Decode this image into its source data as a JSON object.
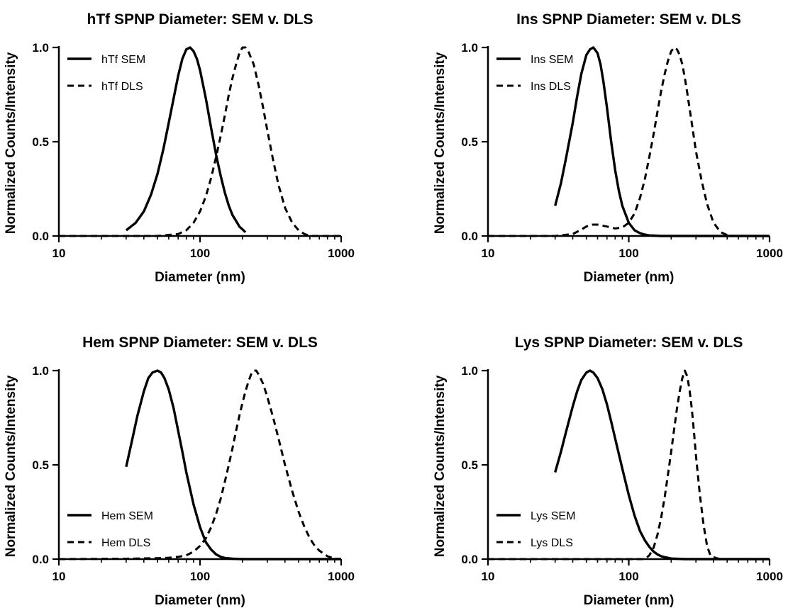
{
  "chart_data": [
    {
      "type": "line",
      "title": "hTf SPNP Diameter: SEM v. DLS",
      "xlabel": "Diameter (nm)",
      "ylabel": "Normalized Counts/Intensity",
      "xscale": "log",
      "xlim": [
        10,
        1000
      ],
      "ylim": [
        0,
        1
      ],
      "xticks": [
        10,
        100,
        1000
      ],
      "xtick_labels": [
        "10",
        "100",
        "1000"
      ],
      "yticks": [
        0,
        0.5,
        1
      ],
      "ytick_labels": [
        "0.0",
        "0.5",
        "1.0"
      ],
      "grid": false,
      "legend": "top-left",
      "series": [
        {
          "name": "hTf SEM",
          "style": "solid",
          "x": [
            30,
            35,
            40,
            45,
            50,
            55,
            60,
            65,
            70,
            75,
            80,
            85,
            90,
            95,
            100,
            110,
            120,
            130,
            140,
            150,
            160,
            170,
            180,
            190,
            200,
            210
          ],
          "y": [
            0.03,
            0.07,
            0.13,
            0.22,
            0.33,
            0.46,
            0.6,
            0.73,
            0.85,
            0.94,
            0.99,
            1.0,
            0.98,
            0.94,
            0.88,
            0.73,
            0.57,
            0.43,
            0.32,
            0.23,
            0.16,
            0.11,
            0.08,
            0.05,
            0.035,
            0.02
          ]
        },
        {
          "name": "hTf DLS",
          "style": "dashed",
          "x": [
            10,
            30,
            50,
            70,
            80,
            90,
            100,
            110,
            120,
            130,
            140,
            150,
            160,
            170,
            180,
            190,
            200,
            210,
            220,
            240,
            260,
            280,
            300,
            330,
            360,
            400,
            450,
            500,
            550,
            600,
            650,
            700,
            800,
            1000
          ],
          "y": [
            0,
            0,
            0,
            0.01,
            0.03,
            0.07,
            0.13,
            0.21,
            0.31,
            0.42,
            0.53,
            0.64,
            0.75,
            0.84,
            0.91,
            0.97,
            1.0,
            1.0,
            0.98,
            0.91,
            0.8,
            0.68,
            0.56,
            0.4,
            0.27,
            0.15,
            0.07,
            0.03,
            0.01,
            0,
            0,
            0,
            0,
            0
          ]
        }
      ]
    },
    {
      "type": "line",
      "title": "Ins SPNP Diameter: SEM v. DLS",
      "xlabel": "Diameter (nm)",
      "ylabel": "Normalized Counts/Intensity",
      "xscale": "log",
      "xlim": [
        10,
        1000
      ],
      "ylim": [
        0,
        1
      ],
      "xticks": [
        10,
        100,
        1000
      ],
      "xtick_labels": [
        "10",
        "100",
        "1000"
      ],
      "yticks": [
        0,
        0.5,
        1
      ],
      "ytick_labels": [
        "0.0",
        "0.5",
        "1.0"
      ],
      "grid": false,
      "legend": "top-left",
      "series": [
        {
          "name": "Ins SEM",
          "style": "solid",
          "x": [
            30,
            33,
            36,
            40,
            43,
            46,
            50,
            53,
            56,
            60,
            63,
            66,
            70,
            75,
            80,
            85,
            90,
            100,
            110,
            120,
            130,
            140,
            150,
            170,
            200,
            250,
            300,
            500,
            1000
          ],
          "y": [
            0.16,
            0.28,
            0.42,
            0.6,
            0.74,
            0.86,
            0.96,
            0.99,
            1.0,
            0.97,
            0.91,
            0.82,
            0.68,
            0.5,
            0.35,
            0.24,
            0.16,
            0.07,
            0.03,
            0.015,
            0.007,
            0.003,
            0.002,
            0,
            0,
            0,
            0,
            0,
            0
          ]
        },
        {
          "name": "Ins DLS",
          "style": "dashed",
          "x": [
            10,
            30,
            40,
            45,
            50,
            55,
            60,
            65,
            70,
            75,
            80,
            90,
            100,
            110,
            120,
            130,
            140,
            150,
            160,
            170,
            180,
            190,
            200,
            210,
            220,
            230,
            240,
            250,
            260,
            280,
            300,
            330,
            360,
            400,
            450,
            500,
            550,
            600,
            700,
            1000
          ],
          "y": [
            0,
            0,
            0.01,
            0.03,
            0.05,
            0.06,
            0.06,
            0.055,
            0.05,
            0.045,
            0.04,
            0.045,
            0.07,
            0.12,
            0.2,
            0.3,
            0.42,
            0.54,
            0.66,
            0.77,
            0.86,
            0.93,
            0.98,
            1.0,
            0.99,
            0.96,
            0.91,
            0.84,
            0.76,
            0.6,
            0.45,
            0.29,
            0.17,
            0.07,
            0.02,
            0.005,
            0,
            0,
            0,
            0
          ]
        }
      ]
    },
    {
      "type": "line",
      "title": "Hem SPNP Diameter: SEM v. DLS",
      "xlabel": "Diameter (nm)",
      "ylabel": "Normalized Counts/Intensity",
      "xscale": "log",
      "xlim": [
        10,
        1000
      ],
      "ylim": [
        0,
        1
      ],
      "xticks": [
        10,
        100,
        1000
      ],
      "xtick_labels": [
        "10",
        "100",
        "1000"
      ],
      "yticks": [
        0,
        0.5,
        1
      ],
      "ytick_labels": [
        "0.0",
        "0.5",
        "1.0"
      ],
      "grid": false,
      "legend": "bottom-left",
      "series": [
        {
          "name": "Hem SEM",
          "style": "solid",
          "x": [
            30,
            33,
            36,
            40,
            43,
            46,
            50,
            53,
            56,
            60,
            65,
            70,
            75,
            80,
            90,
            100,
            110,
            120,
            130,
            140,
            150,
            170,
            200,
            250,
            300,
            500,
            1000
          ],
          "y": [
            0.49,
            0.63,
            0.76,
            0.89,
            0.96,
            0.99,
            1.0,
            0.99,
            0.96,
            0.9,
            0.8,
            0.68,
            0.57,
            0.46,
            0.29,
            0.17,
            0.09,
            0.05,
            0.025,
            0.012,
            0.006,
            0.002,
            0,
            0,
            0,
            0,
            0
          ]
        },
        {
          "name": "Hem DLS",
          "style": "dashed",
          "x": [
            10,
            30,
            50,
            60,
            70,
            80,
            90,
            100,
            110,
            120,
            130,
            140,
            150,
            160,
            170,
            180,
            190,
            200,
            210,
            220,
            230,
            240,
            250,
            260,
            280,
            300,
            330,
            360,
            400,
            450,
            500,
            550,
            600,
            650,
            700,
            800,
            900,
            1000
          ],
          "y": [
            0,
            0.002,
            0.005,
            0.007,
            0.012,
            0.02,
            0.04,
            0.07,
            0.11,
            0.17,
            0.24,
            0.32,
            0.41,
            0.5,
            0.59,
            0.68,
            0.76,
            0.83,
            0.89,
            0.94,
            0.98,
            1.0,
            1.0,
            0.98,
            0.93,
            0.86,
            0.75,
            0.64,
            0.5,
            0.36,
            0.25,
            0.17,
            0.11,
            0.07,
            0.045,
            0.015,
            0.003,
            0
          ]
        }
      ]
    },
    {
      "type": "line",
      "title": "Lys SPNP Diameter: SEM v. DLS",
      "xlabel": "Diameter (nm)",
      "ylabel": "Normalized Counts/Intensity",
      "xscale": "log",
      "xlim": [
        10,
        1000
      ],
      "ylim": [
        0,
        1
      ],
      "xticks": [
        10,
        100,
        1000
      ],
      "xtick_labels": [
        "10",
        "100",
        "1000"
      ],
      "yticks": [
        0,
        0.5,
        1
      ],
      "ytick_labels": [
        "0.0",
        "0.5",
        "1.0"
      ],
      "grid": false,
      "legend": "bottom-left",
      "series": [
        {
          "name": "Lys SEM",
          "style": "solid",
          "x": [
            30,
            33,
            36,
            40,
            43,
            46,
            50,
            53,
            56,
            60,
            65,
            70,
            75,
            80,
            90,
            100,
            110,
            120,
            130,
            140,
            150,
            160,
            170,
            180,
            200,
            250,
            300,
            500,
            1000
          ],
          "y": [
            0.46,
            0.57,
            0.68,
            0.81,
            0.89,
            0.95,
            0.99,
            1.0,
            0.99,
            0.96,
            0.9,
            0.82,
            0.73,
            0.64,
            0.48,
            0.34,
            0.23,
            0.15,
            0.1,
            0.065,
            0.04,
            0.025,
            0.015,
            0.01,
            0.003,
            0,
            0,
            0,
            0
          ]
        },
        {
          "name": "Lys DLS",
          "style": "dashed",
          "x": [
            10,
            100,
            130,
            140,
            150,
            160,
            170,
            180,
            190,
            200,
            210,
            220,
            230,
            240,
            250,
            260,
            270,
            280,
            290,
            300,
            320,
            340,
            360,
            380,
            400,
            420,
            450,
            500,
            1000
          ],
          "y": [
            0,
            0,
            0,
            0.02,
            0.06,
            0.13,
            0.22,
            0.33,
            0.45,
            0.57,
            0.69,
            0.8,
            0.89,
            0.96,
            1.0,
            0.97,
            0.9,
            0.8,
            0.68,
            0.55,
            0.34,
            0.18,
            0.07,
            0.02,
            0.01,
            0.005,
            0,
            0,
            0
          ]
        }
      ]
    }
  ]
}
